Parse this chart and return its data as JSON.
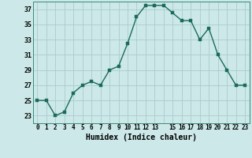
{
  "x": [
    0,
    1,
    2,
    3,
    4,
    5,
    6,
    7,
    8,
    9,
    10,
    11,
    12,
    13,
    14,
    15,
    16,
    17,
    18,
    19,
    20,
    21,
    22,
    23
  ],
  "y": [
    25,
    25,
    23,
    23.5,
    26,
    27,
    27.5,
    27,
    29,
    29.5,
    32.5,
    36,
    37.5,
    37.5,
    37.5,
    36.5,
    35.5,
    35.5,
    33,
    34.5,
    31,
    29,
    27,
    27
  ],
  "line_color": "#1a6b5a",
  "marker_color": "#1a6b5a",
  "bg_color": "#cce8e8",
  "grid_color": "#aacccc",
  "xlabel": "Humidex (Indice chaleur)",
  "xlim": [
    -0.5,
    23.5
  ],
  "ylim": [
    22,
    38
  ],
  "yticks": [
    23,
    25,
    27,
    29,
    31,
    33,
    35,
    37
  ],
  "xtick_labels": [
    "0",
    "1",
    "2",
    "3",
    "4",
    "5",
    "6",
    "7",
    "8",
    "9",
    "10",
    "11",
    "12",
    "13",
    "",
    "15",
    "16",
    "17",
    "18",
    "19",
    "20",
    "21",
    "22",
    "23"
  ],
  "marker_size": 2.5,
  "line_width": 1.0
}
